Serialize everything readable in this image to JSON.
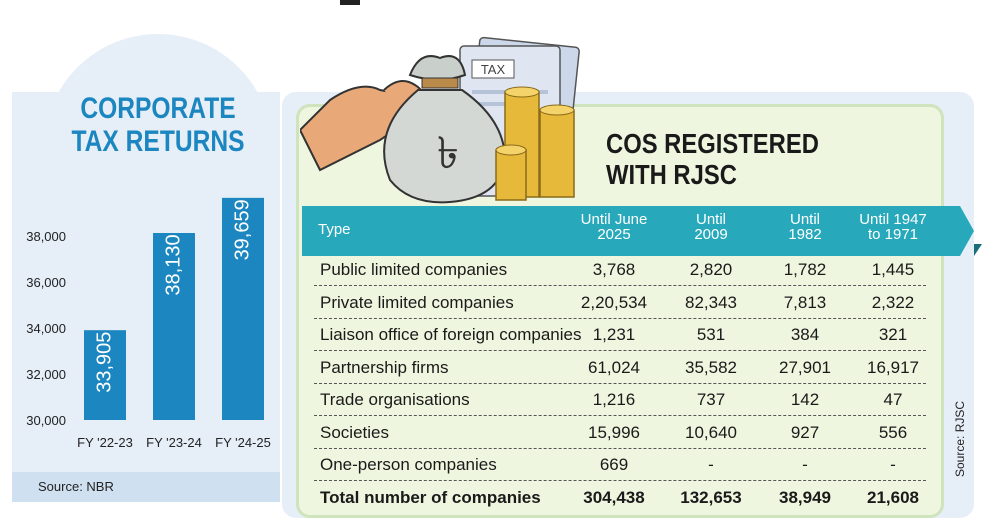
{
  "left": {
    "title_line1": "CORPORATE",
    "title_line2": "TAX RETURNS",
    "source": "Source: NBR"
  },
  "right": {
    "title_line1": "COS REGISTERED",
    "title_line2": "WITH RJSC",
    "source": "Source: RJSC",
    "columns": [
      {
        "line1": "Type",
        "line2": ""
      },
      {
        "line1": "Until June",
        "line2": "2025"
      },
      {
        "line1": "Until",
        "line2": "2009"
      },
      {
        "line1": "Until",
        "line2": "1982"
      },
      {
        "line1": "Until 1947",
        "line2": "to 1971"
      }
    ],
    "rows": [
      {
        "type": "Public limited companies",
        "c1": "3,768",
        "c2": "2,820",
        "c3": "1,782",
        "c4": "1,445"
      },
      {
        "type": "Private limited companies",
        "c1": "2,20,534",
        "c2": "82,343",
        "c3": "7,813",
        "c4": "2,322"
      },
      {
        "type": "Liaison office of foreign companies",
        "c1": "1,231",
        "c2": "531",
        "c3": "384",
        "c4": "321"
      },
      {
        "type": "Partnership firms",
        "c1": "61,024",
        "c2": "35,582",
        "c3": "27,901",
        "c4": "16,917"
      },
      {
        "type": "Trade organisations",
        "c1": "1,216",
        "c2": "737",
        "c3": "142",
        "c4": "47"
      },
      {
        "type": "Societies",
        "c1": "15,996",
        "c2": "10,640",
        "c3": "927",
        "c4": "556"
      },
      {
        "type": "One-person companies",
        "c1": "669",
        "c2": "-",
        "c3": "-",
        "c4": "-"
      }
    ],
    "total": {
      "type": "Total number of companies",
      "c1": "304,438",
      "c2": "132,653",
      "c3": "38,949",
      "c4": "21,608"
    }
  },
  "illustration": {
    "tax_label": "TAX",
    "bag_symbol": "৳"
  },
  "colors": {
    "bar": "#1b86bf",
    "teal": "#27a9bb",
    "title_blue": "#1b86bf",
    "panel_green": "#eff6df",
    "panel_blue": "#e6eef8"
  },
  "chart_data": {
    "type": "bar",
    "title": "CORPORATE TAX RETURNS",
    "categories": [
      "FY '22-23",
      "FY '23-24",
      "FY '24-25"
    ],
    "values": [
      33905,
      38130,
      39659
    ],
    "value_labels": [
      "33,905",
      "38,130",
      "39,659"
    ],
    "yticks": [
      30000,
      32000,
      34000,
      36000,
      38000
    ],
    "ytick_labels": [
      "30,000",
      "32,000",
      "34,000",
      "36,000",
      "38,000"
    ],
    "ylim": [
      30000,
      40000
    ],
    "xlabel": "",
    "ylabel": "",
    "grid": false
  }
}
